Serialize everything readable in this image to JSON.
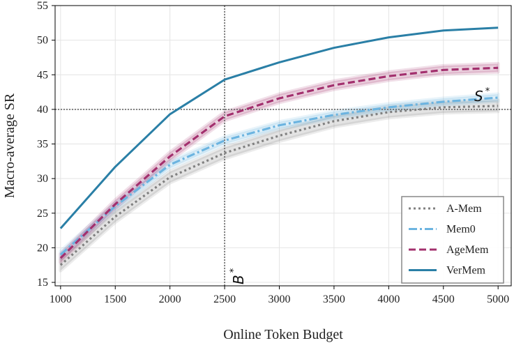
{
  "chart_data": {
    "type": "line",
    "xlabel": "Online Token Budget",
    "ylabel": "Macro-average SR",
    "xlim": [
      950,
      5120
    ],
    "ylim": [
      14.5,
      55
    ],
    "x_ticks": [
      1000,
      1500,
      2000,
      2500,
      3000,
      3500,
      4000,
      4500,
      5000
    ],
    "y_ticks": [
      15,
      20,
      25,
      30,
      35,
      40,
      45,
      50,
      55
    ],
    "grid": true,
    "legend_position": "lower-right",
    "x": [
      1000,
      1500,
      2000,
      2500,
      3000,
      3500,
      4000,
      4500,
      5000
    ],
    "series": [
      {
        "name": "A-Mem",
        "values": [
          17.5,
          24.5,
          30.2,
          33.7,
          36.2,
          38.3,
          39.6,
          40.3,
          40.5
        ],
        "color": "#808080",
        "dash": "dotted",
        "band": 0.8
      },
      {
        "name": "Mem0",
        "values": [
          19.0,
          26.0,
          32.0,
          35.5,
          37.7,
          39.2,
          40.3,
          41.1,
          41.7
        ],
        "color": "#6cb4e0",
        "dash": "dashdot",
        "band": 0.5
      },
      {
        "name": "AgeMem",
        "values": [
          18.5,
          26.3,
          33.2,
          39.0,
          41.6,
          43.5,
          44.8,
          45.7,
          46.0
        ],
        "color": "#a3306e",
        "dash": "dashed",
        "band": 0.6
      },
      {
        "name": "VerMem",
        "values": [
          22.8,
          31.7,
          39.3,
          44.3,
          46.8,
          48.9,
          50.4,
          51.4,
          51.8
        ],
        "color": "#2a7fa6",
        "dash": "solid",
        "band": 0
      }
    ],
    "reference_lines": {
      "horizontal": {
        "value": 40,
        "label": "S",
        "sup": "*"
      },
      "vertical": {
        "value": 2500,
        "label": "B",
        "sup": "*"
      }
    }
  }
}
